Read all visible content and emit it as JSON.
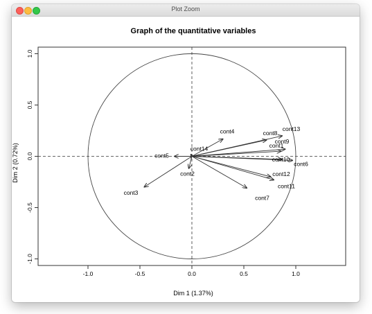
{
  "window": {
    "title": "Plot Zoom"
  },
  "chart_data": {
    "type": "scatter",
    "title": "Graph of the quantitative variables",
    "xlabel": "Dim 1 (1.37%)",
    "ylabel": "Dim 2 (0.72%)",
    "xlim": [
      -1.5,
      1.5
    ],
    "ylim": [
      -1.05,
      1.05
    ],
    "xticks": [
      -1.0,
      -0.5,
      0.0,
      0.5,
      1.0
    ],
    "xtick_labels": [
      "-1.0",
      "-0.5",
      "0.0",
      "0.5",
      "1.0"
    ],
    "yticks": [
      -1.0,
      -0.5,
      0.0,
      0.5,
      1.0
    ],
    "ytick_labels": [
      "-1.0",
      "-0.5",
      "0.0",
      "0.5",
      "1.0"
    ],
    "grid": false,
    "unit_circle": true,
    "reference_lines": "dashed at x=0 and y=0",
    "colors": {
      "arrow": "#333333",
      "frame": "#333333",
      "text": "#000000"
    },
    "variables": [
      {
        "name": "cont13",
        "x": 0.87,
        "y": 0.2
      },
      {
        "name": "cont8",
        "x": 0.72,
        "y": 0.16
      },
      {
        "name": "cont9",
        "x": 0.9,
        "y": 0.07
      },
      {
        "name": "cont4",
        "x": 0.3,
        "y": 0.17
      },
      {
        "name": "cont1",
        "x": 0.86,
        "y": 0.05
      },
      {
        "name": "cont14",
        "x": -0.01,
        "y": 0.02
      },
      {
        "name": "cont5",
        "x": -0.17,
        "y": 0.0
      },
      {
        "name": "cont10",
        "x": 0.87,
        "y": -0.03
      },
      {
        "name": "cont6",
        "x": 0.97,
        "y": -0.04
      },
      {
        "name": "cont2",
        "x": -0.03,
        "y": -0.12
      },
      {
        "name": "cont12",
        "x": 0.76,
        "y": -0.2
      },
      {
        "name": "cont11",
        "x": 0.79,
        "y": -0.23
      },
      {
        "name": "cont7",
        "x": 0.53,
        "y": -0.31
      },
      {
        "name": "cont3",
        "x": -0.46,
        "y": -0.3
      }
    ]
  }
}
